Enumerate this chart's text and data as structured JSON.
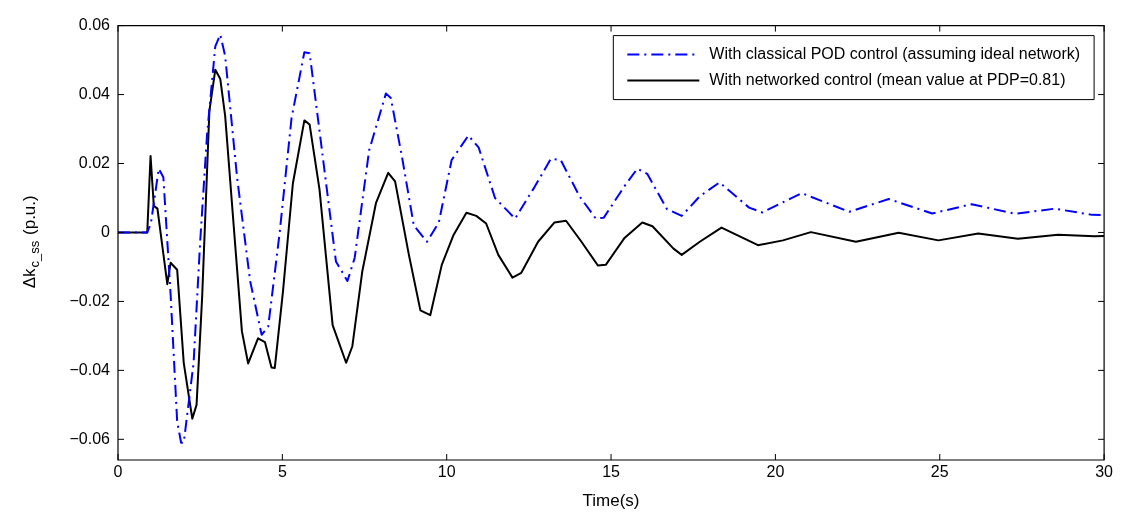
{
  "chart_data": {
    "type": "line",
    "xlabel": "Time(s)",
    "ylabel": "Δk$_{c_ss}$ (p.u.)",
    "xlim": [
      0,
      30
    ],
    "xticks": [
      0,
      5,
      10,
      15,
      20,
      25,
      30
    ],
    "ylim": [
      -0.066,
      0.06
    ],
    "yticks": [
      -0.06,
      -0.04,
      -0.02,
      0,
      0.02,
      0.04,
      0.06
    ],
    "grid": false,
    "legend": "top right",
    "marker": "none",
    "series": [
      {
        "name": "With classical POD control (assuming ideal network)",
        "color": "#0000ff",
        "line_style": "dashdot",
        "x": [
          0,
          0.89,
          1.0,
          1.24,
          1.38,
          1.6,
          1.8,
          1.92,
          2.0,
          2.3,
          2.5,
          2.71,
          2.96,
          3.11,
          3.26,
          3.62,
          4.02,
          4.37,
          4.57,
          4.92,
          5.28,
          5.67,
          5.83,
          6.13,
          6.63,
          6.98,
          7.2,
          7.64,
          8.15,
          8.3,
          8.64,
          9.0,
          9.4,
          9.76,
          10.15,
          10.66,
          10.97,
          11.47,
          12.08,
          12.68,
          13.17,
          13.47,
          14.04,
          14.53,
          14.78,
          15.4,
          15.8,
          16.1,
          16.7,
          17.15,
          17.7,
          18.3,
          19.2,
          19.6,
          20.8,
          22.25,
          23.45,
          24.77,
          25.97,
          27.3,
          28.5,
          29.64,
          30
        ],
        "values": [
          0,
          0,
          0.0026,
          0.0185,
          0.016,
          -0.0179,
          -0.0548,
          -0.061,
          -0.061,
          -0.0378,
          -0.0027,
          0.0285,
          0.054,
          0.0574,
          0.0512,
          0.0162,
          -0.0141,
          -0.0297,
          -0.0273,
          0.0001,
          0.0332,
          0.0523,
          0.052,
          0.0295,
          -0.0084,
          -0.0141,
          -0.0074,
          0.0238,
          0.0403,
          0.039,
          0.0219,
          0.002,
          -0.0027,
          0.0029,
          0.021,
          0.0281,
          0.0247,
          0.01,
          0.004,
          0.0133,
          0.0214,
          0.021,
          0.0105,
          0.0041,
          0.0043,
          0.0133,
          0.0185,
          0.017,
          0.0068,
          0.0048,
          0.0105,
          0.0145,
          0.0072,
          0.0058,
          0.0114,
          0.006,
          0.0097,
          0.0055,
          0.0082,
          0.0054,
          0.0069,
          0.0051,
          0.005
        ]
      },
      {
        "name": "With networked control (mean value at PDP=0.81)",
        "color": "#000000",
        "line_style": "solid",
        "x": [
          0,
          0.89,
          0.99,
          1.09,
          1.2,
          1.5,
          1.6,
          1.8,
          2.0,
          2.26,
          2.39,
          2.56,
          2.78,
          2.96,
          3.11,
          3.26,
          3.77,
          3.96,
          4.26,
          4.47,
          4.67,
          4.77,
          5.02,
          5.32,
          5.67,
          5.83,
          6.13,
          6.53,
          6.94,
          7.13,
          7.43,
          7.85,
          8.22,
          8.43,
          8.85,
          9.2,
          9.5,
          9.85,
          10.2,
          10.6,
          10.9,
          11.2,
          11.57,
          12.0,
          12.27,
          12.78,
          13.28,
          13.63,
          14.1,
          14.6,
          14.84,
          15.4,
          15.95,
          16.26,
          16.9,
          17.15,
          17.7,
          18.36,
          19.47,
          20.23,
          21.08,
          22.45,
          23.75,
          24.96,
          26.17,
          27.38,
          28.6,
          29.7,
          30
        ],
        "values": [
          0,
          0,
          0.0222,
          0.0077,
          0.0069,
          -0.015,
          -0.0088,
          -0.0108,
          -0.0378,
          -0.054,
          -0.05,
          -0.0187,
          0.0352,
          0.0472,
          0.0446,
          0.0338,
          -0.0287,
          -0.038,
          -0.0307,
          -0.0318,
          -0.0392,
          -0.0393,
          -0.017,
          0.0142,
          0.0325,
          0.0313,
          0.0125,
          -0.0269,
          -0.0378,
          -0.033,
          -0.0114,
          0.0086,
          0.0173,
          0.0148,
          -0.0065,
          -0.0226,
          -0.024,
          -0.0094,
          -0.0009,
          0.0057,
          0.0048,
          0.0026,
          -0.0065,
          -0.0131,
          -0.0117,
          -0.0027,
          0.0029,
          0.0034,
          -0.0027,
          -0.0096,
          -0.0094,
          -0.0017,
          0.0029,
          0.0018,
          -0.0047,
          -0.0065,
          -0.0027,
          0.0014,
          -0.0037,
          -0.0023,
          0.0001,
          -0.0027,
          -0.0001,
          -0.0023,
          -0.0003,
          -0.0018,
          -0.0007,
          -0.0011,
          -0.001
        ]
      }
    ]
  }
}
